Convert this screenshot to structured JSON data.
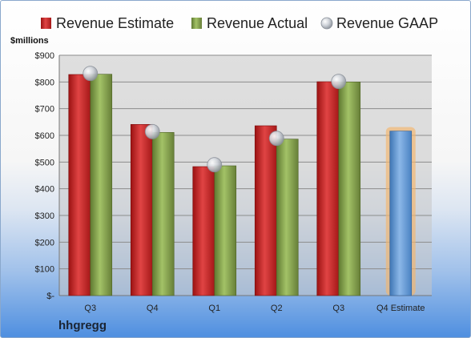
{
  "chart_data": {
    "type": "bar",
    "company": "hhgregg",
    "ylabel": "$millions",
    "ylim": [
      0,
      900
    ],
    "yticks": [
      0,
      100,
      200,
      300,
      400,
      500,
      600,
      700,
      800,
      900
    ],
    "ytick_labels": [
      "$-",
      "$100",
      "$200",
      "$300",
      "$400",
      "$500",
      "$600",
      "$700",
      "$800",
      "$900"
    ],
    "categories": [
      "Q3",
      "Q4",
      "Q1",
      "Q2",
      "Q3",
      "Q4 Estimate"
    ],
    "legend_position": "top",
    "grid": true,
    "series": [
      {
        "name": "Revenue Estimate",
        "color": "#d42a2a",
        "values": [
          828,
          641,
          483,
          636,
          801,
          null
        ]
      },
      {
        "name": "Revenue Actual",
        "color": "#8cad52",
        "values": [
          829,
          611,
          486,
          586,
          800,
          616
        ]
      },
      {
        "name": "Revenue GAAP",
        "color": "#b8bec8",
        "values": [
          832,
          614,
          490,
          589,
          802,
          null
        ]
      }
    ],
    "estimate_bar_color": "#5b9bd5",
    "estimate_glow_color": "#f5b66b"
  }
}
